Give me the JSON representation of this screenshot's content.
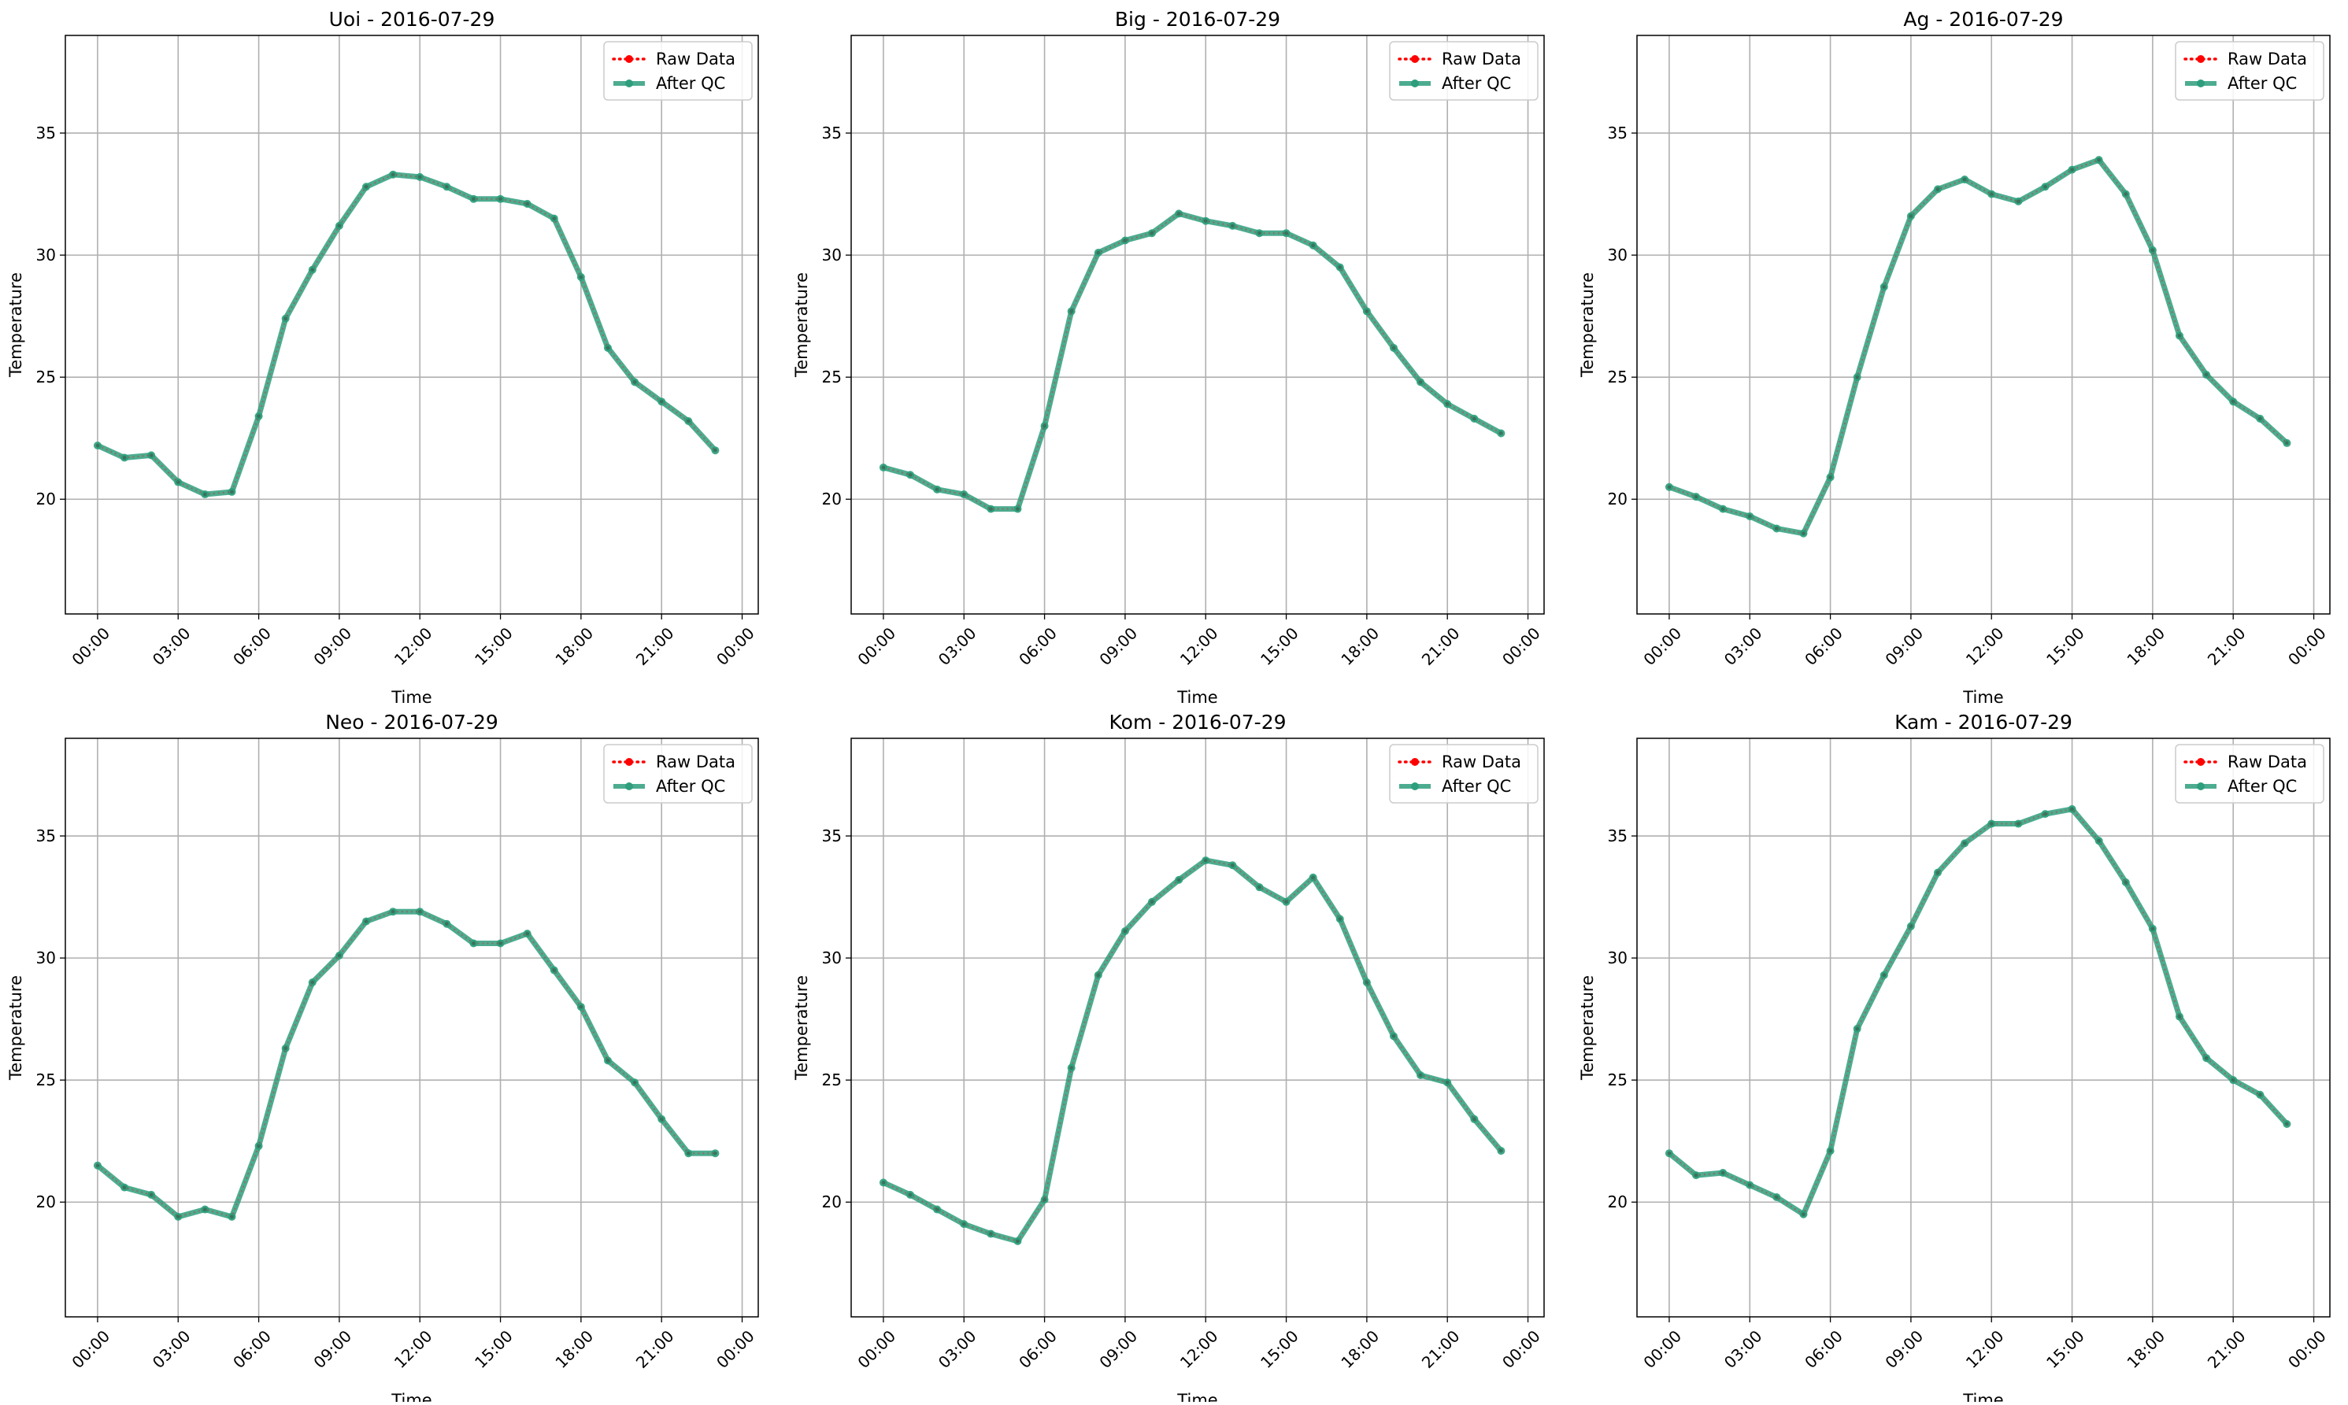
{
  "chart_data": [
    {
      "type": "line",
      "title": "Uoi - 2016-07-29",
      "xlabel": "Time",
      "ylabel": "Temperature",
      "xticks": [
        "00:00",
        "03:00",
        "06:00",
        "09:00",
        "12:00",
        "15:00",
        "18:00",
        "21:00",
        "00:00"
      ],
      "yticks": [
        "20",
        "25",
        "30",
        "35"
      ],
      "ylim": [
        15.3,
        39
      ],
      "series": [
        {
          "name": "Raw Data",
          "color": "#ff0000",
          "values": [
            22.2,
            21.7,
            21.8,
            20.7,
            20.2,
            20.3,
            23.4,
            27.4,
            29.4,
            31.2,
            32.8,
            33.3,
            33.2,
            32.8,
            32.3,
            32.3,
            32.1,
            31.5,
            29.1,
            26.2,
            24.8,
            24.0,
            23.2,
            22.0
          ]
        },
        {
          "name": "After QC",
          "color": "#2e9e7c",
          "values": [
            22.2,
            21.7,
            21.8,
            20.7,
            20.2,
            20.3,
            23.4,
            27.4,
            29.4,
            31.2,
            32.8,
            33.3,
            33.2,
            32.8,
            32.3,
            32.3,
            32.1,
            31.5,
            29.1,
            26.2,
            24.8,
            24.0,
            23.2,
            22.0
          ]
        }
      ]
    },
    {
      "type": "line",
      "title": "Big - 2016-07-29",
      "xlabel": "Time",
      "ylabel": "Temperature",
      "xticks": [
        "00:00",
        "03:00",
        "06:00",
        "09:00",
        "12:00",
        "15:00",
        "18:00",
        "21:00",
        "00:00"
      ],
      "yticks": [
        "20",
        "25",
        "30",
        "35"
      ],
      "ylim": [
        15.3,
        39
      ],
      "series": [
        {
          "name": "Raw Data",
          "color": "#ff0000",
          "values": [
            21.3,
            21.0,
            20.4,
            20.2,
            19.6,
            19.6,
            23.0,
            27.7,
            30.1,
            30.6,
            30.9,
            31.7,
            31.4,
            31.2,
            30.9,
            30.9,
            30.4,
            29.5,
            27.7,
            26.2,
            24.8,
            23.9,
            23.3,
            22.7
          ]
        },
        {
          "name": "After QC",
          "color": "#2e9e7c",
          "values": [
            21.3,
            21.0,
            20.4,
            20.2,
            19.6,
            19.6,
            23.0,
            27.7,
            30.1,
            30.6,
            30.9,
            31.7,
            31.4,
            31.2,
            30.9,
            30.9,
            30.4,
            29.5,
            27.7,
            26.2,
            24.8,
            23.9,
            23.3,
            22.7
          ]
        }
      ]
    },
    {
      "type": "line",
      "title": "Ag - 2016-07-29",
      "xlabel": "Time",
      "ylabel": "Temperature",
      "xticks": [
        "00:00",
        "03:00",
        "06:00",
        "09:00",
        "12:00",
        "15:00",
        "18:00",
        "21:00",
        "00:00"
      ],
      "yticks": [
        "20",
        "25",
        "30",
        "35"
      ],
      "ylim": [
        15.3,
        39
      ],
      "series": [
        {
          "name": "Raw Data",
          "color": "#ff0000",
          "values": [
            20.5,
            20.1,
            19.6,
            19.3,
            18.8,
            18.6,
            20.9,
            25.0,
            28.7,
            31.6,
            32.7,
            33.1,
            32.5,
            32.2,
            32.8,
            33.5,
            33.9,
            32.5,
            30.2,
            26.7,
            25.1,
            24.0,
            23.3,
            22.3
          ]
        },
        {
          "name": "After QC",
          "color": "#2e9e7c",
          "values": [
            20.5,
            20.1,
            19.6,
            19.3,
            18.8,
            18.6,
            20.9,
            25.0,
            28.7,
            31.6,
            32.7,
            33.1,
            32.5,
            32.2,
            32.8,
            33.5,
            33.9,
            32.5,
            30.2,
            26.7,
            25.1,
            24.0,
            23.3,
            22.3
          ]
        }
      ]
    },
    {
      "type": "line",
      "title": "Neo - 2016-07-29",
      "xlabel": "Time",
      "ylabel": "Temperature",
      "xticks": [
        "00:00",
        "03:00",
        "06:00",
        "09:00",
        "12:00",
        "15:00",
        "18:00",
        "21:00",
        "00:00"
      ],
      "yticks": [
        "20",
        "25",
        "30",
        "35"
      ],
      "ylim": [
        15.3,
        39
      ],
      "series": [
        {
          "name": "Raw Data",
          "color": "#ff0000",
          "values": [
            21.5,
            20.6,
            20.3,
            19.4,
            19.7,
            19.4,
            22.3,
            26.3,
            29.0,
            30.1,
            31.5,
            31.9,
            31.9,
            31.4,
            30.6,
            30.6,
            31.0,
            29.5,
            28.0,
            25.8,
            24.9,
            23.4,
            22.0,
            22.0
          ]
        },
        {
          "name": "After QC",
          "color": "#2e9e7c",
          "values": [
            21.5,
            20.6,
            20.3,
            19.4,
            19.7,
            19.4,
            22.3,
            26.3,
            29.0,
            30.1,
            31.5,
            31.9,
            31.9,
            31.4,
            30.6,
            30.6,
            31.0,
            29.5,
            28.0,
            25.8,
            24.9,
            23.4,
            22.0,
            22.0
          ]
        }
      ]
    },
    {
      "type": "line",
      "title": "Kom - 2016-07-29",
      "xlabel": "Time",
      "ylabel": "Temperature",
      "xticks": [
        "00:00",
        "03:00",
        "06:00",
        "09:00",
        "12:00",
        "15:00",
        "18:00",
        "21:00",
        "00:00"
      ],
      "yticks": [
        "20",
        "25",
        "30",
        "35"
      ],
      "ylim": [
        15.3,
        39
      ],
      "series": [
        {
          "name": "Raw Data",
          "color": "#ff0000",
          "values": [
            20.8,
            20.3,
            19.7,
            19.1,
            18.7,
            18.4,
            20.1,
            25.5,
            29.3,
            31.1,
            32.3,
            33.2,
            34.0,
            33.8,
            32.9,
            32.3,
            33.3,
            31.6,
            29.0,
            26.8,
            25.2,
            24.9,
            23.4,
            22.1
          ]
        },
        {
          "name": "After QC",
          "color": "#2e9e7c",
          "values": [
            20.8,
            20.3,
            19.7,
            19.1,
            18.7,
            18.4,
            20.1,
            25.5,
            29.3,
            31.1,
            32.3,
            33.2,
            34.0,
            33.8,
            32.9,
            32.3,
            33.3,
            31.6,
            29.0,
            26.8,
            25.2,
            24.9,
            23.4,
            22.1
          ]
        }
      ]
    },
    {
      "type": "line",
      "title": "Kam - 2016-07-29",
      "xlabel": "Time",
      "ylabel": "Temperature",
      "xticks": [
        "00:00",
        "03:00",
        "06:00",
        "09:00",
        "12:00",
        "15:00",
        "18:00",
        "21:00",
        "00:00"
      ],
      "yticks": [
        "20",
        "25",
        "30",
        "35"
      ],
      "ylim": [
        15.3,
        39
      ],
      "series": [
        {
          "name": "Raw Data",
          "color": "#ff0000",
          "values": [
            22.0,
            21.1,
            21.2,
            20.7,
            20.2,
            19.5,
            22.1,
            27.1,
            29.3,
            31.3,
            33.5,
            34.7,
            35.5,
            35.5,
            35.9,
            36.1,
            34.8,
            33.1,
            31.2,
            27.6,
            25.9,
            25.0,
            24.4,
            23.2
          ]
        },
        {
          "name": "After QC",
          "color": "#2e9e7c",
          "values": [
            22.0,
            21.1,
            21.2,
            20.7,
            20.2,
            19.5,
            22.1,
            27.1,
            29.3,
            31.3,
            33.5,
            34.7,
            35.5,
            35.5,
            35.9,
            36.1,
            34.8,
            33.1,
            31.2,
            27.6,
            25.9,
            25.0,
            24.4,
            23.2
          ]
        }
      ]
    }
  ]
}
